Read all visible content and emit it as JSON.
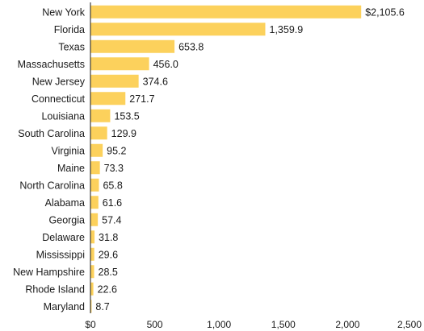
{
  "chart_data": {
    "type": "bar",
    "orientation": "horizontal",
    "categories": [
      "New York",
      "Florida",
      "Texas",
      "Massachusetts",
      "New Jersey",
      "Connecticut",
      "Louisiana",
      "South Carolina",
      "Virginia",
      "Maine",
      "North Carolina",
      "Alabama",
      "Georgia",
      "Delaware",
      "Mississippi",
      "New Hampshire",
      "Rhode Island",
      "Maryland"
    ],
    "values": [
      2105.6,
      1359.9,
      653.8,
      456.0,
      374.6,
      271.7,
      153.5,
      129.9,
      95.2,
      73.3,
      65.8,
      61.6,
      57.4,
      31.8,
      29.6,
      28.5,
      22.6,
      8.7
    ],
    "value_labels": [
      "$2,105.6",
      "1,359.9",
      "653.8",
      "456.0",
      "374.6",
      "271.7",
      "153.5",
      "129.9",
      "95.2",
      "73.3",
      "65.8",
      "61.6",
      "57.4",
      "31.8",
      "29.6",
      "28.5",
      "22.6",
      "8.7"
    ],
    "x_ticks": [
      0,
      500,
      1000,
      1500,
      2000,
      2500
    ],
    "x_tick_labels": [
      "$0",
      "500",
      "1,000",
      "1,500",
      "2,000",
      "2,500"
    ],
    "xlim": [
      0,
      2500
    ],
    "title": "",
    "xlabel": "",
    "ylabel": "",
    "grid": false,
    "legend": "none",
    "colors": {
      "bar": "#fcd15c",
      "axis": "#1a1a1a"
    }
  }
}
